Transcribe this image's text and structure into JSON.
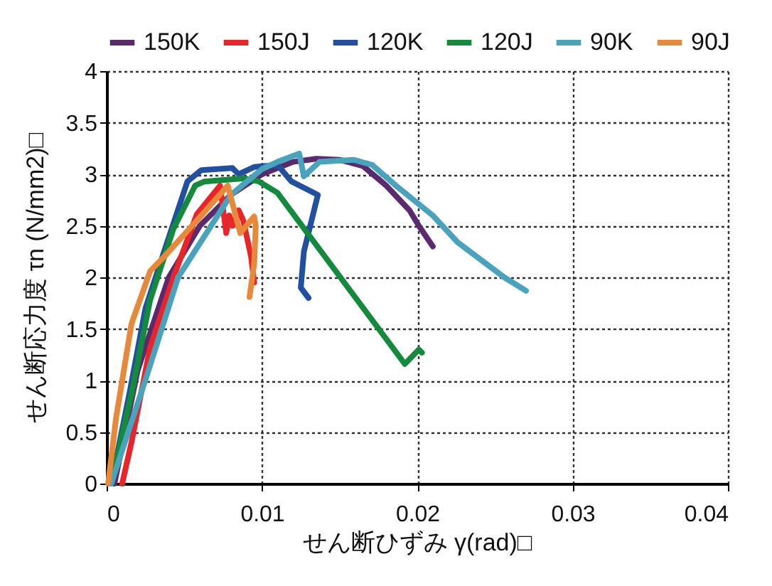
{
  "chart_data": {
    "type": "line",
    "xlabel": "せん断ひずみ γ(rad)□",
    "ylabel": "せん断応力度 τn (N/mm2)□",
    "xlim": [
      0,
      0.04
    ],
    "xticks": [
      0,
      0.01,
      0.02,
      0.03,
      0.04
    ],
    "ylim": [
      0,
      4
    ],
    "yticks": [
      0,
      0.5,
      1,
      1.5,
      2,
      2.5,
      3,
      3.5,
      4
    ],
    "grid": true,
    "legend": "top",
    "marker": "none",
    "line_style": "solid",
    "series": [
      {
        "name": "150K",
        "color": "#5b2a6e",
        "x": [
          0.0005,
          0.002,
          0.004,
          0.006,
          0.008,
          0.01,
          0.012,
          0.0135,
          0.015,
          0.0165,
          0.018,
          0.0195,
          0.0201,
          0.021
        ],
        "values": [
          0,
          1.1,
          2.0,
          2.5,
          2.8,
          3.0,
          3.12,
          3.15,
          3.14,
          3.08,
          2.89,
          2.65,
          2.5,
          2.3
        ]
      },
      {
        "name": "150J",
        "color": "#e8262a",
        "x": [
          0.001,
          0.0016,
          0.0028,
          0.0043,
          0.0058,
          0.0073,
          0.0077,
          0.0079,
          0.0081,
          0.0085,
          0.0088,
          0.0093,
          0.0095
        ],
        "values": [
          0,
          0.4,
          1.32,
          2.0,
          2.61,
          2.89,
          2.43,
          2.6,
          2.5,
          2.65,
          2.55,
          2.2,
          1.95
        ]
      },
      {
        "name": "120K",
        "color": "#2150a0",
        "x": [
          0.0003,
          0.0015,
          0.0025,
          0.0037,
          0.0052,
          0.0061,
          0.0081,
          0.0085,
          0.0095,
          0.011,
          0.0119,
          0.0136,
          0.0127,
          0.0125,
          0.013
        ],
        "values": [
          0,
          0.9,
          1.7,
          2.25,
          2.93,
          3.04,
          3.06,
          3.0,
          3.07,
          3.09,
          2.93,
          2.8,
          2.25,
          1.9,
          1.8
        ]
      },
      {
        "name": "120J",
        "color": "#138a3c",
        "x": [
          0.0003,
          0.0016,
          0.0028,
          0.0043,
          0.0057,
          0.0063,
          0.0089,
          0.0098,
          0.011,
          0.0192,
          0.0201,
          0.0203
        ],
        "values": [
          0,
          0.87,
          1.78,
          2.47,
          2.89,
          2.93,
          2.96,
          2.93,
          2.82,
          1.16,
          1.3,
          1.27
        ]
      },
      {
        "name": "90K",
        "color": "#4aa3bd",
        "x": [
          0.0003,
          0.0027,
          0.0046,
          0.008,
          0.01,
          0.011,
          0.0124,
          0.0127,
          0.0137,
          0.0159,
          0.0171,
          0.0187,
          0.021,
          0.0226,
          0.0256,
          0.027
        ],
        "values": [
          0,
          1.1,
          2.0,
          2.8,
          3.05,
          3.12,
          3.2,
          2.98,
          3.12,
          3.14,
          3.09,
          2.88,
          2.6,
          2.34,
          2.0,
          1.87
        ]
      },
      {
        "name": "90J",
        "color": "#e6893a",
        "x": [
          0.0001,
          0.0006,
          0.0016,
          0.0028,
          0.0037,
          0.0058,
          0.0078,
          0.0086,
          0.0095,
          0.0096,
          0.0095,
          0.0092
        ],
        "values": [
          0,
          0.63,
          1.55,
          2.06,
          2.2,
          2.55,
          2.89,
          2.43,
          2.59,
          2.5,
          2.13,
          1.81
        ]
      }
    ]
  }
}
